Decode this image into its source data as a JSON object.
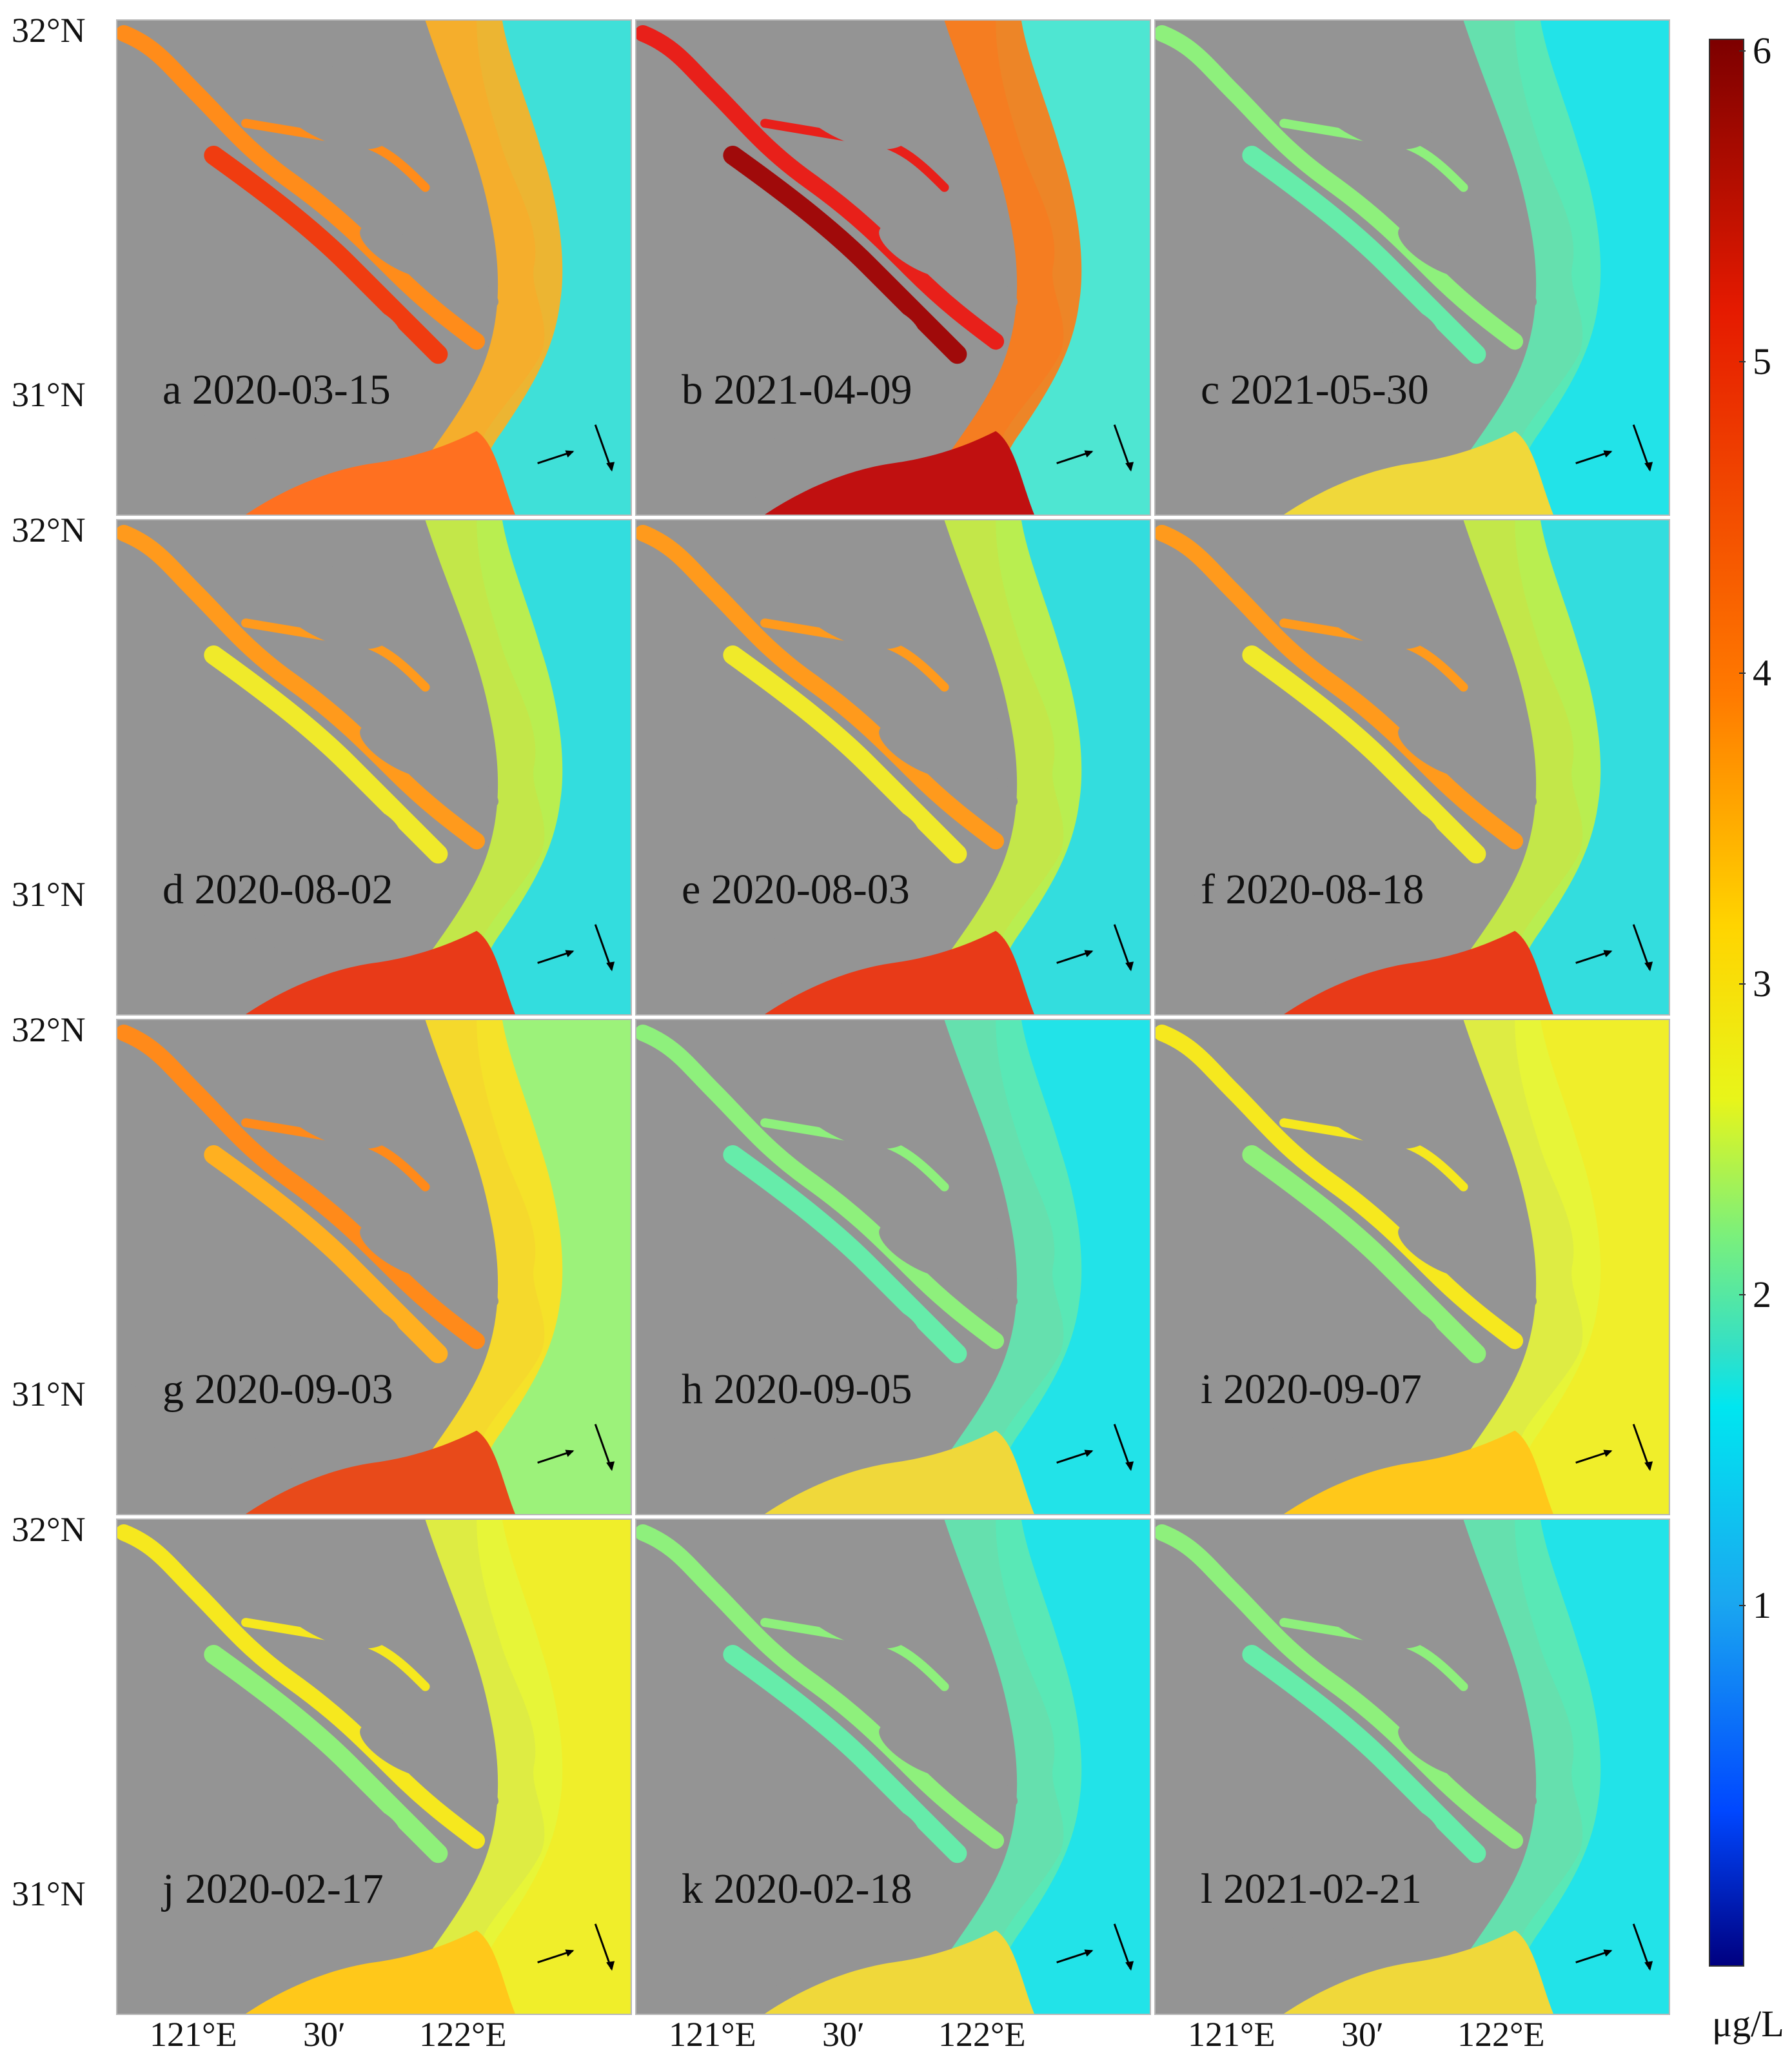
{
  "lat_labels": {
    "north": "32°N",
    "south": "31°N"
  },
  "lon_labels": {
    "lon1": "121°E",
    "lon2": "30′",
    "lon3": "122°E"
  },
  "panels": [
    {
      "label": "a 2020-03-15",
      "scheme": "high"
    },
    {
      "label": "b 2021-04-09",
      "scheme": "veryhigh"
    },
    {
      "label": "c 2021-05-30",
      "scheme": "low"
    },
    {
      "label": "d 2020-08-02",
      "scheme": "mid"
    },
    {
      "label": "e 2020-08-03",
      "scheme": "mid"
    },
    {
      "label": "f 2020-08-18",
      "scheme": "mid"
    },
    {
      "label": "g 2020-09-03",
      "scheme": "midhigh"
    },
    {
      "label": "h 2020-09-05",
      "scheme": "low"
    },
    {
      "label": "i 2020-09-07",
      "scheme": "yellow"
    },
    {
      "label": "j 2020-02-17",
      "scheme": "yellow"
    },
    {
      "label": "k 2020-02-18",
      "scheme": "low"
    },
    {
      "label": "l 2021-02-21",
      "scheme": "low"
    }
  ],
  "colorbar": {
    "ticks": [
      "6",
      "5",
      "4",
      "3",
      "2",
      "1"
    ],
    "unit": "μg/L",
    "colors": [
      "#7d0000",
      "#e51a00",
      "#ff7a00",
      "#ffd400",
      "#7cf07a",
      "#00e6f0",
      "#0047ff",
      "#000080"
    ]
  }
}
